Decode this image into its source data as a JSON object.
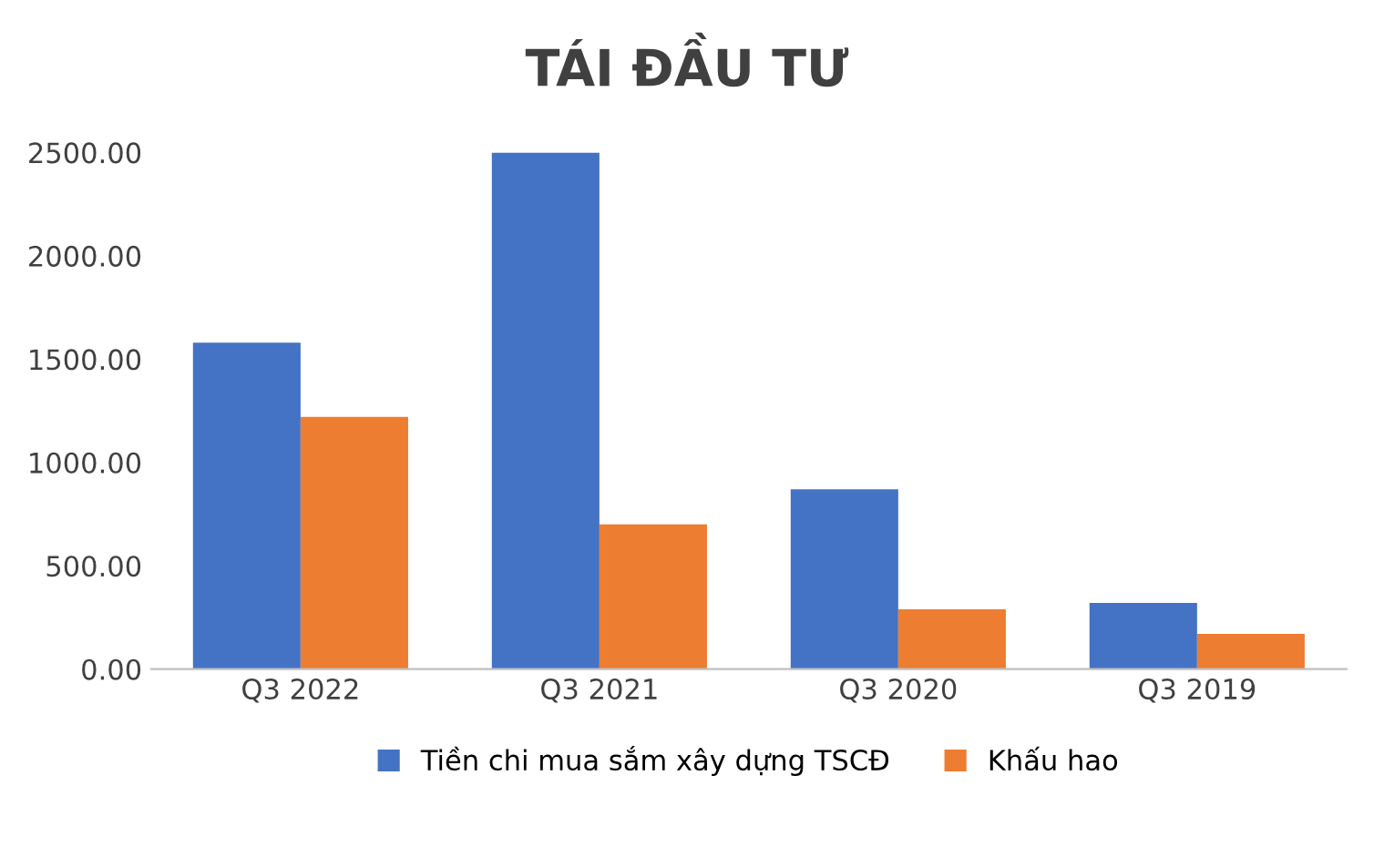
{
  "chart_data": {
    "type": "bar",
    "title": "TÁI ĐẦU TƯ",
    "categories": [
      "Q3 2022",
      "Q3 2021",
      "Q3 2020",
      "Q3 2019"
    ],
    "series": [
      {
        "name": "Tiền chi mua sắm xây dựng TSCĐ",
        "color": "#4472c4",
        "values": [
          1580,
          2500,
          870,
          320
        ]
      },
      {
        "name": "Khấu hao",
        "color": "#ed7d31",
        "values": [
          1220,
          700,
          290,
          170
        ]
      }
    ],
    "ylim": [
      0,
      2500
    ],
    "yticks": [
      {
        "value": 0,
        "label": "0.00"
      },
      {
        "value": 500,
        "label": "500.00"
      },
      {
        "value": 1000,
        "label": "1000.00"
      },
      {
        "value": 1500,
        "label": "1500.00"
      },
      {
        "value": 2000,
        "label": "2000.00"
      },
      {
        "value": 2500,
        "label": "2500.00"
      }
    ],
    "grid": false,
    "legend": "bottom"
  }
}
